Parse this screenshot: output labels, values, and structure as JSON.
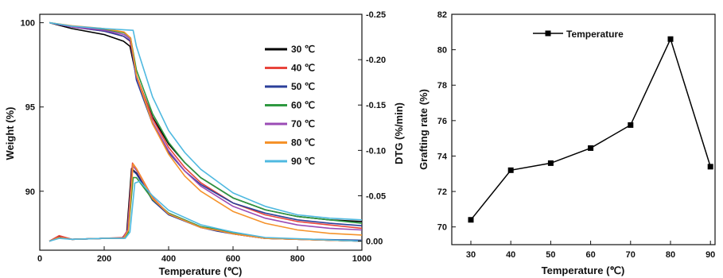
{
  "chart_data": [
    {
      "type": "line",
      "xlabel": "Temperature (℃)",
      "ylabel": "Weight (%)",
      "y2label": "DTG (%/min)",
      "xlim": [
        0,
        1000
      ],
      "ylim": [
        86.5,
        100.5
      ],
      "y2lim": [
        0.01,
        -0.25
      ],
      "x_ticks": [
        "0",
        "200",
        "400",
        "600",
        "800",
        "1000"
      ],
      "y_ticks": [
        "90",
        "95",
        "100"
      ],
      "y2_ticks": [
        "-0.25",
        "-0.20",
        "-0.15",
        "-0.10",
        "-0.05",
        "0.00"
      ],
      "legend_position": "top-right",
      "series": [
        {
          "name": "30 ℃",
          "color": "#000000",
          "weight": [
            [
              30,
              100
            ],
            [
              100,
              99.65
            ],
            [
              200,
              99.3
            ],
            [
              260,
              98.9
            ],
            [
              280,
              98.6
            ],
            [
              300,
              96.8
            ],
            [
              350,
              94.4
            ],
            [
              400,
              92.8
            ],
            [
              450,
              91.7
            ],
            [
              500,
              90.8
            ],
            [
              600,
              89.6
            ],
            [
              700,
              88.9
            ],
            [
              800,
              88.5
            ],
            [
              900,
              88.3
            ],
            [
              1000,
              88.2
            ]
          ],
          "dtg": [
            [
              30,
              0
            ],
            [
              60,
              -0.005
            ],
            [
              100,
              -0.002
            ],
            [
              200,
              -0.003
            ],
            [
              255,
              -0.003
            ],
            [
              270,
              -0.01
            ],
            [
              285,
              -0.08
            ],
            [
              300,
              -0.075
            ],
            [
              350,
              -0.045
            ],
            [
              400,
              -0.03
            ],
            [
              500,
              -0.015
            ],
            [
              550,
              -0.012
            ],
            [
              600,
              -0.008
            ],
            [
              700,
              -0.003
            ],
            [
              1000,
              0
            ]
          ]
        },
        {
          "name": "40 ℃",
          "color": "#e8453c",
          "weight": [
            [
              30,
              100
            ],
            [
              100,
              99.75
            ],
            [
              200,
              99.5
            ],
            [
              260,
              99.2
            ],
            [
              280,
              98.9
            ],
            [
              300,
              96.9
            ],
            [
              350,
              94.3
            ],
            [
              400,
              92.6
            ],
            [
              450,
              91.4
            ],
            [
              500,
              90.5
            ],
            [
              600,
              89.3
            ],
            [
              700,
              88.6
            ],
            [
              800,
              88.2
            ],
            [
              900,
              88
            ],
            [
              1000,
              87.8
            ]
          ],
          "dtg": [
            [
              30,
              0
            ],
            [
              60,
              -0.006
            ],
            [
              100,
              -0.002
            ],
            [
              200,
              -0.003
            ],
            [
              258,
              -0.004
            ],
            [
              272,
              -0.012
            ],
            [
              288,
              -0.086
            ],
            [
              300,
              -0.08
            ],
            [
              350,
              -0.048
            ],
            [
              400,
              -0.03
            ],
            [
              500,
              -0.015
            ],
            [
              550,
              -0.012
            ],
            [
              600,
              -0.008
            ],
            [
              700,
              -0.003
            ],
            [
              1000,
              0
            ]
          ]
        },
        {
          "name": "50 ℃",
          "color": "#2b3f9a",
          "weight": [
            [
              30,
              100
            ],
            [
              100,
              99.75
            ],
            [
              200,
              99.5
            ],
            [
              260,
              99.2
            ],
            [
              282,
              98.9
            ],
            [
              300,
              96.6
            ],
            [
              350,
              94
            ],
            [
              400,
              92.3
            ],
            [
              450,
              91.2
            ],
            [
              500,
              90.4
            ],
            [
              600,
              89.3
            ],
            [
              700,
              88.7
            ],
            [
              800,
              88.3
            ],
            [
              900,
              88.1
            ],
            [
              1000,
              87.95
            ]
          ],
          "dtg": [
            [
              30,
              0
            ],
            [
              60,
              -0.004
            ],
            [
              100,
              -0.002
            ],
            [
              200,
              -0.003
            ],
            [
              258,
              -0.003
            ],
            [
              272,
              -0.01
            ],
            [
              288,
              -0.078
            ],
            [
              300,
              -0.074
            ],
            [
              350,
              -0.045
            ],
            [
              400,
              -0.029
            ],
            [
              500,
              -0.015
            ],
            [
              550,
              -0.011
            ],
            [
              600,
              -0.008
            ],
            [
              700,
              -0.003
            ],
            [
              1000,
              -0.001
            ]
          ]
        },
        {
          "name": "60 ℃",
          "color": "#2e9940",
          "weight": [
            [
              30,
              100
            ],
            [
              100,
              99.8
            ],
            [
              200,
              99.6
            ],
            [
              262,
              99.4
            ],
            [
              282,
              99.1
            ],
            [
              300,
              97.2
            ],
            [
              350,
              94.6
            ],
            [
              400,
              92.9
            ],
            [
              450,
              91.7
            ],
            [
              500,
              90.8
            ],
            [
              600,
              89.6
            ],
            [
              700,
              88.9
            ],
            [
              800,
              88.5
            ],
            [
              900,
              88.3
            ],
            [
              1000,
              88.1
            ]
          ],
          "dtg": [
            [
              30,
              0
            ],
            [
              60,
              -0.004
            ],
            [
              100,
              -0.002
            ],
            [
              200,
              -0.003
            ],
            [
              260,
              -0.003
            ],
            [
              275,
              -0.01
            ],
            [
              290,
              -0.07
            ],
            [
              300,
              -0.07
            ],
            [
              350,
              -0.046
            ],
            [
              400,
              -0.031
            ],
            [
              500,
              -0.016
            ],
            [
              550,
              -0.013
            ],
            [
              600,
              -0.009
            ],
            [
              700,
              -0.003
            ],
            [
              1000,
              0
            ]
          ]
        },
        {
          "name": "70 ℃",
          "color": "#9b4bb5",
          "weight": [
            [
              30,
              100
            ],
            [
              100,
              99.75
            ],
            [
              200,
              99.55
            ],
            [
              262,
              99.3
            ],
            [
              282,
              99
            ],
            [
              300,
              96.8
            ],
            [
              350,
              94.1
            ],
            [
              400,
              92.4
            ],
            [
              450,
              91.2
            ],
            [
              500,
              90.3
            ],
            [
              600,
              89.1
            ],
            [
              700,
              88.4
            ],
            [
              800,
              88
            ],
            [
              900,
              87.8
            ],
            [
              1000,
              87.7
            ]
          ],
          "dtg": [
            [
              30,
              0
            ],
            [
              60,
              -0.004
            ],
            [
              100,
              -0.002
            ],
            [
              200,
              -0.003
            ],
            [
              258,
              -0.003
            ],
            [
              273,
              -0.012
            ],
            [
              289,
              -0.083
            ],
            [
              300,
              -0.078
            ],
            [
              350,
              -0.047
            ],
            [
              400,
              -0.03
            ],
            [
              500,
              -0.015
            ],
            [
              550,
              -0.012
            ],
            [
              600,
              -0.008
            ],
            [
              700,
              -0.003
            ],
            [
              1000,
              0
            ]
          ]
        },
        {
          "name": "80 ℃",
          "color": "#f5922a",
          "weight": [
            [
              30,
              100
            ],
            [
              100,
              99.82
            ],
            [
              200,
              99.65
            ],
            [
              262,
              99.45
            ],
            [
              282,
              99.1
            ],
            [
              300,
              96.9
            ],
            [
              350,
              94
            ],
            [
              400,
              92.2
            ],
            [
              450,
              90.9
            ],
            [
              500,
              90
            ],
            [
              600,
              88.8
            ],
            [
              700,
              88.1
            ],
            [
              800,
              87.7
            ],
            [
              900,
              87.5
            ],
            [
              1000,
              87.4
            ]
          ],
          "dtg": [
            [
              30,
              0
            ],
            [
              60,
              -0.004
            ],
            [
              100,
              -0.002
            ],
            [
              200,
              -0.003
            ],
            [
              260,
              -0.003
            ],
            [
              275,
              -0.012
            ],
            [
              290,
              -0.085
            ],
            [
              300,
              -0.08
            ],
            [
              350,
              -0.047
            ],
            [
              400,
              -0.03
            ],
            [
              500,
              -0.015
            ],
            [
              550,
              -0.012
            ],
            [
              600,
              -0.008
            ],
            [
              700,
              -0.003
            ],
            [
              1000,
              0
            ]
          ]
        },
        {
          "name": "90 ℃",
          "color": "#4fb9e0",
          "weight": [
            [
              30,
              100
            ],
            [
              100,
              99.8
            ],
            [
              200,
              99.65
            ],
            [
              290,
              99.55
            ],
            [
              300,
              98.6
            ],
            [
              350,
              95.6
            ],
            [
              400,
              93.6
            ],
            [
              450,
              92.3
            ],
            [
              500,
              91.3
            ],
            [
              600,
              89.9
            ],
            [
              700,
              89.1
            ],
            [
              800,
              88.6
            ],
            [
              900,
              88.4
            ],
            [
              1000,
              88.3
            ]
          ],
          "dtg": [
            [
              30,
              0
            ],
            [
              60,
              -0.003
            ],
            [
              100,
              -0.002
            ],
            [
              200,
              -0.003
            ],
            [
              265,
              -0.003
            ],
            [
              280,
              -0.01
            ],
            [
              295,
              -0.064
            ],
            [
              310,
              -0.066
            ],
            [
              350,
              -0.05
            ],
            [
              400,
              -0.034
            ],
            [
              500,
              -0.018
            ],
            [
              550,
              -0.014
            ],
            [
              600,
              -0.01
            ],
            [
              700,
              -0.004
            ],
            [
              1000,
              0
            ]
          ]
        }
      ]
    },
    {
      "type": "line",
      "xlabel": "Temperature (℃)",
      "ylabel": "Grafting rate (%)",
      "x_ticks": [
        "30",
        "40",
        "50",
        "60",
        "70",
        "80",
        "90"
      ],
      "ylim": [
        69,
        82
      ],
      "y_ticks": [
        "70",
        "72",
        "74",
        "76",
        "78",
        "80",
        "82"
      ],
      "legend_position": "top-left",
      "series": [
        {
          "name": "Temperature",
          "color": "#000000",
          "x": [
            30,
            40,
            50,
            60,
            70,
            80,
            90
          ],
          "values": [
            70.4,
            73.2,
            73.6,
            74.45,
            75.75,
            80.6,
            73.4
          ]
        }
      ]
    }
  ]
}
